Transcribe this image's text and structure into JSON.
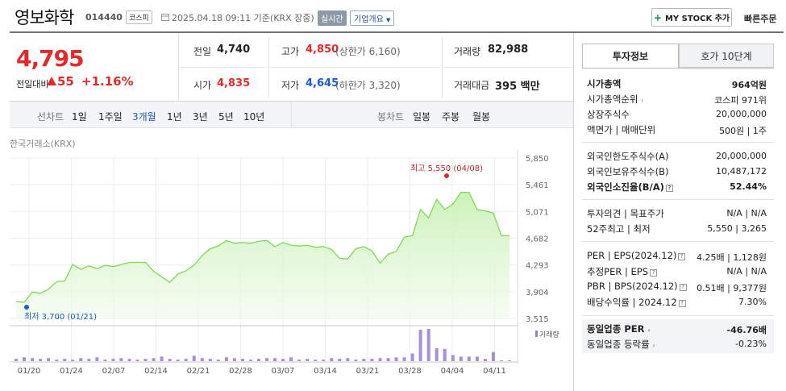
{
  "header": {
    "company_name": "영보화학",
    "stock_code": "014440",
    "market": "코스피",
    "date_text": "2025.04.18 09:11 기준(KRX 장중)",
    "realtime": "실시간",
    "company_overview": "기업개요",
    "mystock": "MY STOCK 추가",
    "quick_order": "빠른주문"
  },
  "price": {
    "current": "4,795",
    "change_label": "전일대비",
    "change_amount": "55",
    "change_rate": "+1.16%",
    "prev_label": "전일",
    "prev": "4,740",
    "open_label": "시가",
    "open": "4,835",
    "high_label": "고가",
    "high": "4,850",
    "upper_limit": "(상한가 6,160)",
    "low_label": "저가",
    "low": "4,645",
    "lower_limit": "(하한가 3,320)",
    "volume_label": "거래량",
    "volume": "82,988",
    "amount_label": "거래대금",
    "amount": "395 백만"
  },
  "chart_tabs": {
    "line_label": "선차트",
    "line": [
      "1일",
      "1주일",
      "3개월",
      "1년",
      "3년",
      "5년",
      "10년"
    ],
    "active": "3개월",
    "candle_label": "봉차트",
    "candle": [
      "일봉",
      "주봉",
      "월봉"
    ]
  },
  "chart_source": "한국거래소(KRX)",
  "chart_data": {
    "type": "area",
    "x_ticks": [
      "01/20",
      "01/24",
      "02/07",
      "02/14",
      "02/21",
      "02/28",
      "03/07",
      "03/14",
      "03/21",
      "03/28",
      "04/04",
      "04/11"
    ],
    "y_ticks": [
      5850,
      5461,
      5071,
      4682,
      4293,
      3904,
      3515
    ],
    "ylim": [
      3515,
      5850
    ],
    "max_label": "최고 5,550 (04/08)",
    "min_label": "최저 3,700 (01/21)",
    "volume_label": "거래량",
    "prices": [
      3760,
      3750,
      3900,
      3880,
      3940,
      4050,
      4060,
      4300,
      4230,
      4280,
      4240,
      4290,
      4270,
      4300,
      4330,
      4330,
      4330,
      4200,
      4120,
      4040,
      4160,
      4210,
      4290,
      4430,
      4530,
      4570,
      4650,
      4610,
      4620,
      4610,
      4640,
      4650,
      4560,
      4620,
      4580,
      4570,
      4580,
      4550,
      4560,
      4520,
      4390,
      4380,
      4530,
      4560,
      4500,
      4320,
      4450,
      4490,
      4700,
      4720,
      5100,
      4980,
      5250,
      5100,
      5180,
      5350,
      5350,
      5100,
      5080,
      5050,
      4720,
      4720
    ],
    "volumes": [
      3,
      5,
      4,
      3,
      4,
      2,
      3,
      2,
      4,
      3,
      5,
      2,
      3,
      4,
      3,
      2,
      3,
      4,
      6,
      3,
      2,
      3,
      7,
      4,
      3,
      2,
      5,
      4,
      3,
      2,
      3,
      4,
      4,
      3,
      5,
      2,
      3,
      2,
      2,
      4,
      3,
      4,
      2,
      3,
      3,
      4,
      4,
      5,
      5,
      10,
      41,
      42,
      17,
      16,
      8,
      6,
      6,
      6,
      3,
      12,
      1,
      1
    ],
    "volume_max": 42
  },
  "right_panel": {
    "tab_invest": "투자정보",
    "tab_hoga": "호가 10단계",
    "market_cap_label": "시가총액",
    "market_cap": "964억원",
    "cap_rank_label": "시가총액순위",
    "cap_rank": "코스피 971위",
    "shares_label": "상장주식수",
    "shares": "20,000,000",
    "par_label": "액면가 | 매매단위",
    "par": "500원 | 1주",
    "foreign_limit_label": "외국인한도주식수(A)",
    "foreign_limit": "20,000,000",
    "foreign_hold_label": "외국인보유주식수(B)",
    "foreign_hold": "10,487,172",
    "foreign_rate_label": "외국인소진율(B/A)",
    "foreign_rate": "52.44%",
    "opinion_label": "투자의견 | 목표주가",
    "opinion": "N/A | N/A",
    "week52_label": "52주최고 | 최저",
    "week52": "5,550 | 3,265",
    "per_label": "PER | EPS(2024.12)",
    "per": "4.25배 | 1,128원",
    "est_per_label": "추정PER | EPS",
    "est_per": "N/A | N/A",
    "pbr_label": "PBR | BPS(2024.12)",
    "pbr": "0.51배 | 9,377원",
    "dividend_label": "배당수익률 | 2024.12",
    "dividend": "7.30%",
    "industry_per_label": "동일업종 PER",
    "industry_per": "-46.76배",
    "industry_rate_label": "동일업종 등락률",
    "industry_rate": "-0.23%"
  }
}
